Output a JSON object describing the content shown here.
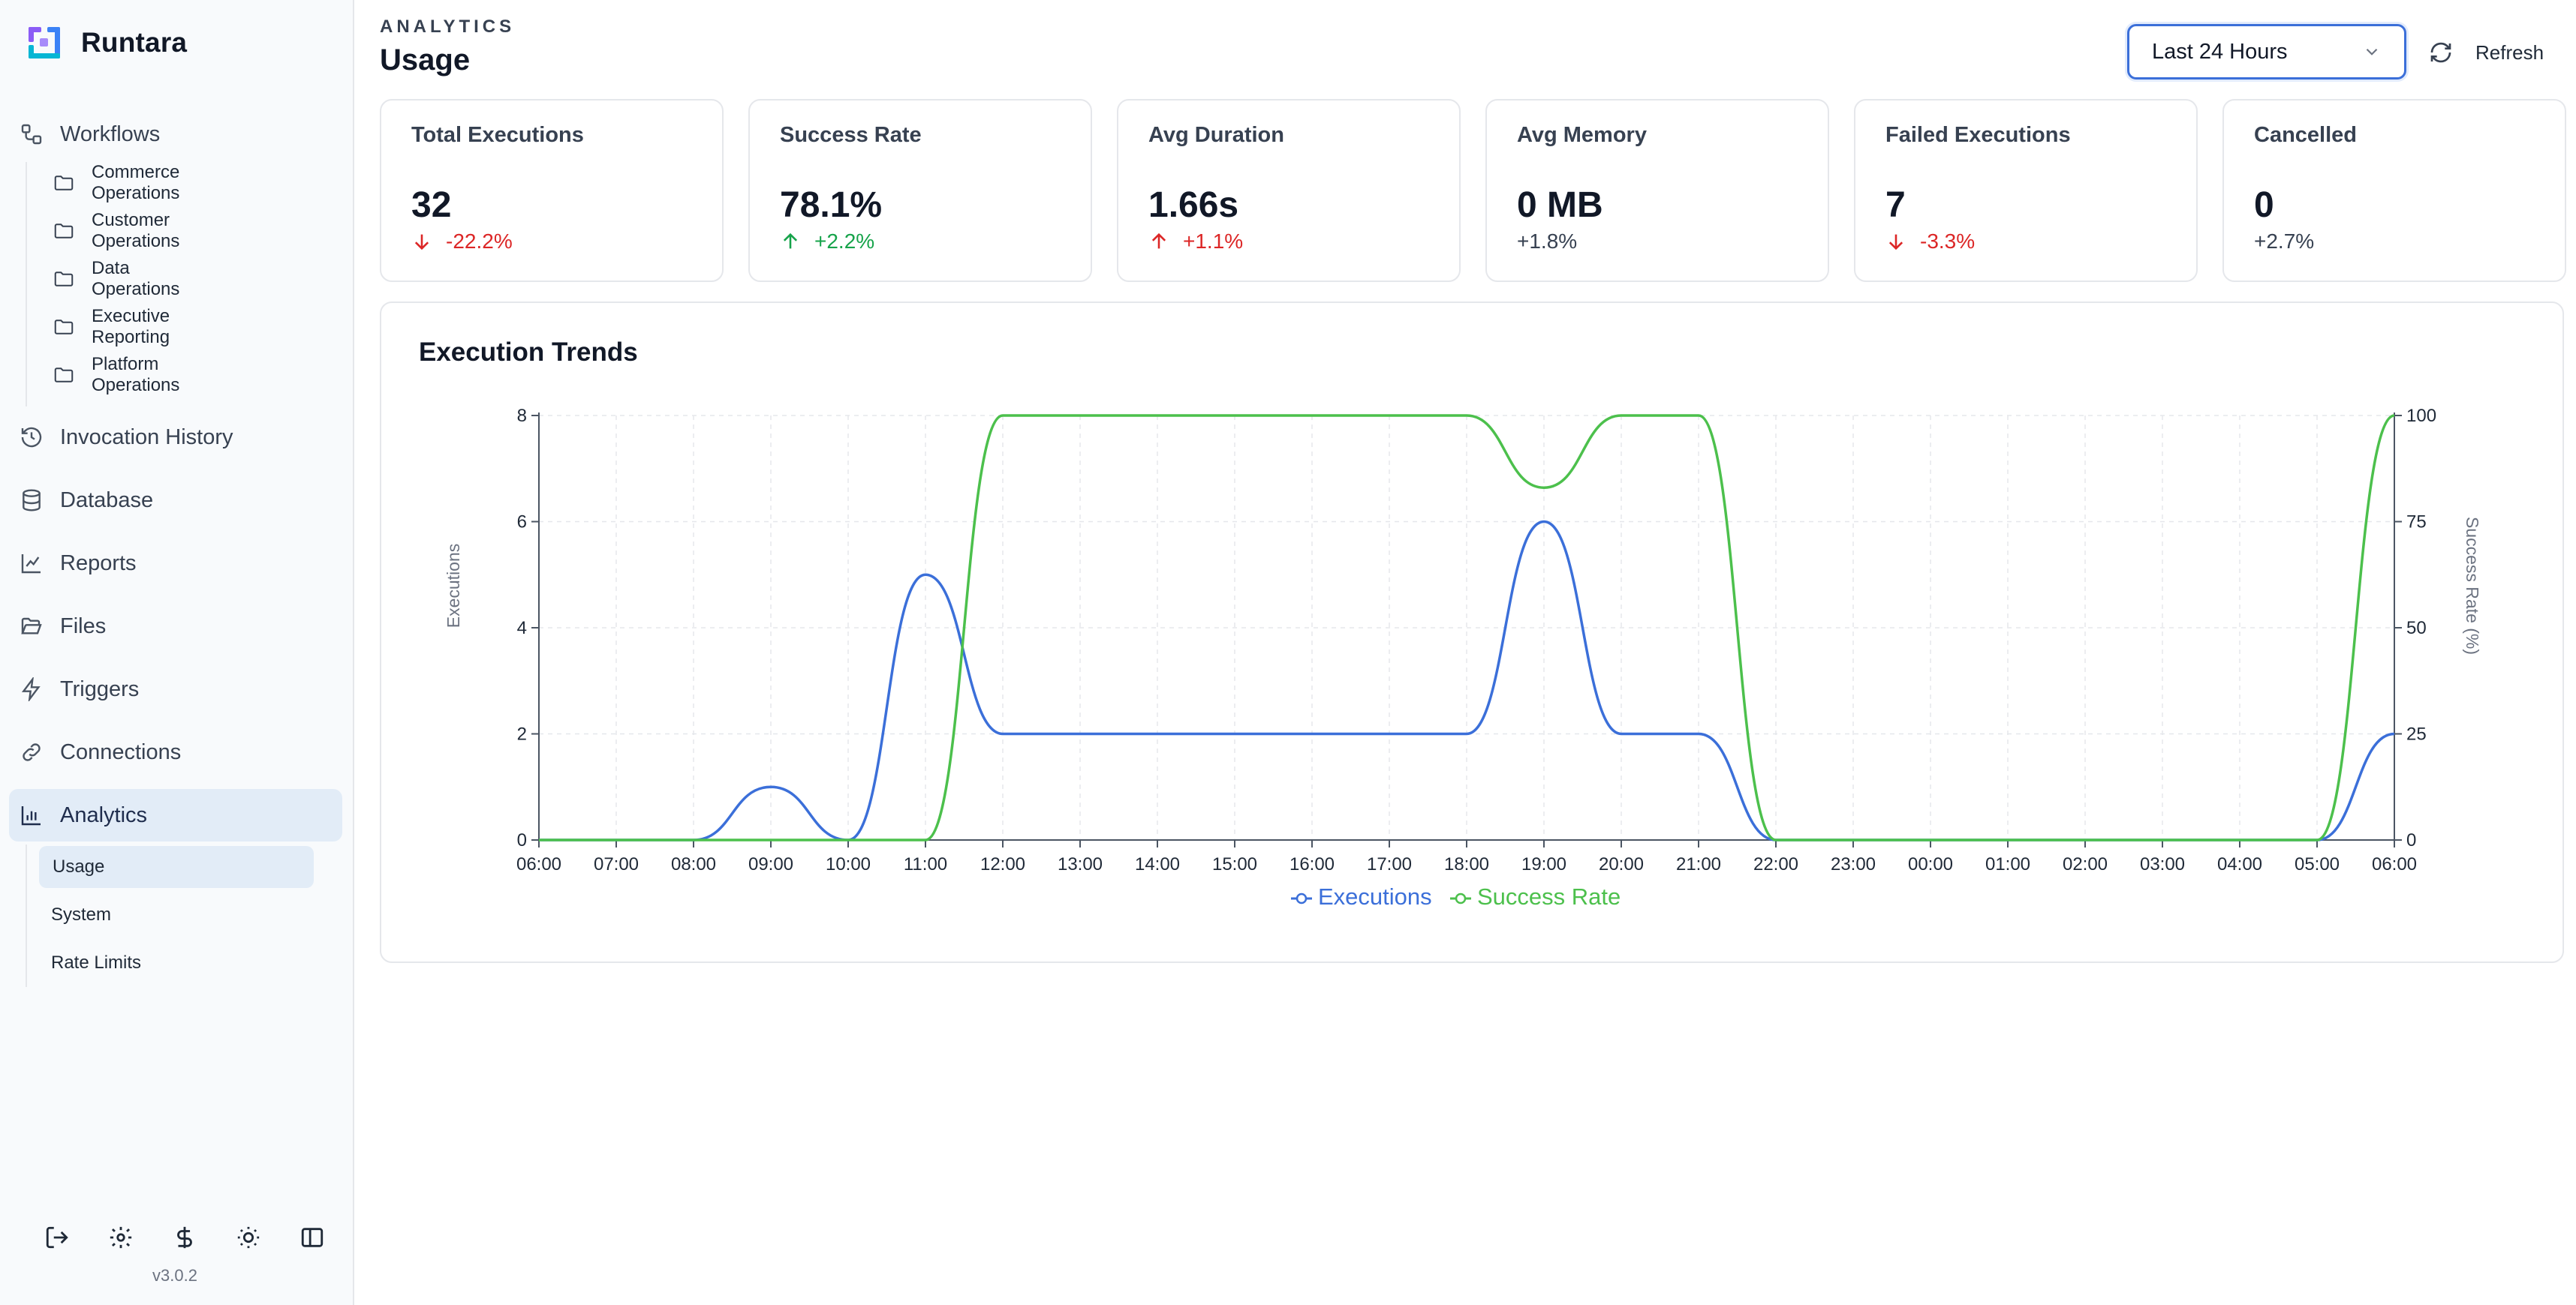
{
  "app": {
    "name": "Runtara",
    "version": "v3.0.2"
  },
  "sidebar": {
    "workflows": "Workflows",
    "folders": [
      "Commerce Operations",
      "Customer Operations",
      "Data Operations",
      "Executive Reporting",
      "Platform Operations"
    ],
    "invocation_history": "Invocation History",
    "database": "Database",
    "reports": "Reports",
    "files": "Files",
    "triggers": "Triggers",
    "connections": "Connections",
    "analytics": "Analytics",
    "analytics_sub": [
      "Usage",
      "System",
      "Rate Limits"
    ],
    "active_item": "Analytics",
    "active_sub": "Usage"
  },
  "header": {
    "eyebrow": "ANALYTICS",
    "title": "Usage",
    "range": "Last 24 Hours",
    "refresh": "Refresh"
  },
  "metrics": [
    {
      "label": "Total Executions",
      "value": "32",
      "delta": "-22.2%",
      "trend": "down",
      "color": "#dc2626"
    },
    {
      "label": "Success Rate",
      "value": "78.1%",
      "delta": "+2.2%",
      "trend": "up",
      "color": "#16a34a"
    },
    {
      "label": "Avg Duration",
      "value": "1.66s",
      "delta": "+1.1%",
      "trend": "up",
      "color": "#dc2626"
    },
    {
      "label": "Avg Memory",
      "value": "0 MB",
      "delta": "+1.8%",
      "trend": "none",
      "color": "#374151"
    },
    {
      "label": "Failed Executions",
      "value": "7",
      "delta": "-3.3%",
      "trend": "down",
      "color": "#dc2626"
    },
    {
      "label": "Cancelled",
      "value": "0",
      "delta": "+2.7%",
      "trend": "none",
      "color": "#374151"
    }
  ],
  "chart_title": "Execution Trends",
  "chart_data": {
    "type": "line",
    "x": [
      "06:00",
      "07:00",
      "08:00",
      "09:00",
      "10:00",
      "11:00",
      "12:00",
      "13:00",
      "14:00",
      "15:00",
      "16:00",
      "17:00",
      "18:00",
      "19:00",
      "20:00",
      "21:00",
      "22:00",
      "23:00",
      "00:00",
      "01:00",
      "02:00",
      "03:00",
      "04:00",
      "05:00",
      "06:00"
    ],
    "series": [
      {
        "name": "Executions",
        "axis": "left",
        "color": "#3b6fd9",
        "values": [
          0,
          0,
          0,
          1,
          0,
          5,
          2,
          2,
          2,
          2,
          2,
          2,
          2,
          6,
          2,
          2,
          0,
          0,
          0,
          0,
          0,
          0,
          0,
          0,
          2
        ]
      },
      {
        "name": "Success Rate",
        "axis": "right",
        "color": "#4cc04c",
        "values": [
          0,
          0,
          0,
          0,
          0,
          0,
          100,
          100,
          100,
          100,
          100,
          100,
          100,
          83,
          100,
          100,
          0,
          0,
          0,
          0,
          0,
          0,
          0,
          0,
          100
        ]
      }
    ],
    "ylabel": "Executions",
    "y2label": "Success Rate (%)",
    "ylim": [
      0,
      8
    ],
    "yticks": [
      0,
      2,
      4,
      6,
      8
    ],
    "y2lim": [
      0,
      100
    ],
    "y2ticks": [
      0,
      25,
      50,
      75,
      100
    ],
    "grid": true,
    "legend": "bottom-center"
  }
}
